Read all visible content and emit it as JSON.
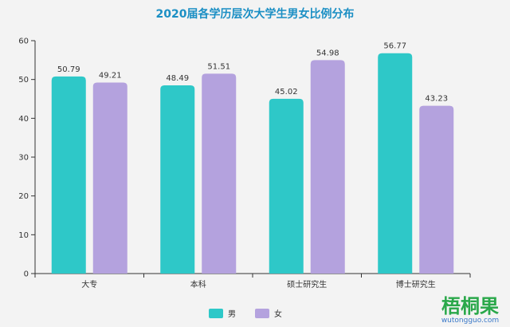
{
  "chart_data": {
    "type": "bar",
    "title": "2020届各学历层次大学生男女比例分布",
    "categories": [
      "大专",
      "本科",
      "硕士研究生",
      "博士研究生"
    ],
    "series": [
      {
        "name": "男",
        "values": [
          50.79,
          48.49,
          45.02,
          56.77
        ],
        "color": "#2ec8c8"
      },
      {
        "name": "女",
        "values": [
          49.21,
          51.51,
          54.98,
          43.23
        ],
        "color": "#b4a2de"
      }
    ],
    "ylim": [
      0,
      60
    ],
    "yticks": [
      0,
      10,
      20,
      30,
      40,
      50,
      60
    ],
    "grid": false,
    "legend": "bottom-center",
    "xlabel": "",
    "ylabel": ""
  },
  "colors": {
    "title": "#1b8fc4",
    "axis": "#333333",
    "background": "#f3f3f3",
    "watermark_green": "#2aa84a",
    "watermark_blue": "#3a79c9"
  },
  "watermark": {
    "cn": "梧桐果",
    "url": "wutongguo.com"
  }
}
